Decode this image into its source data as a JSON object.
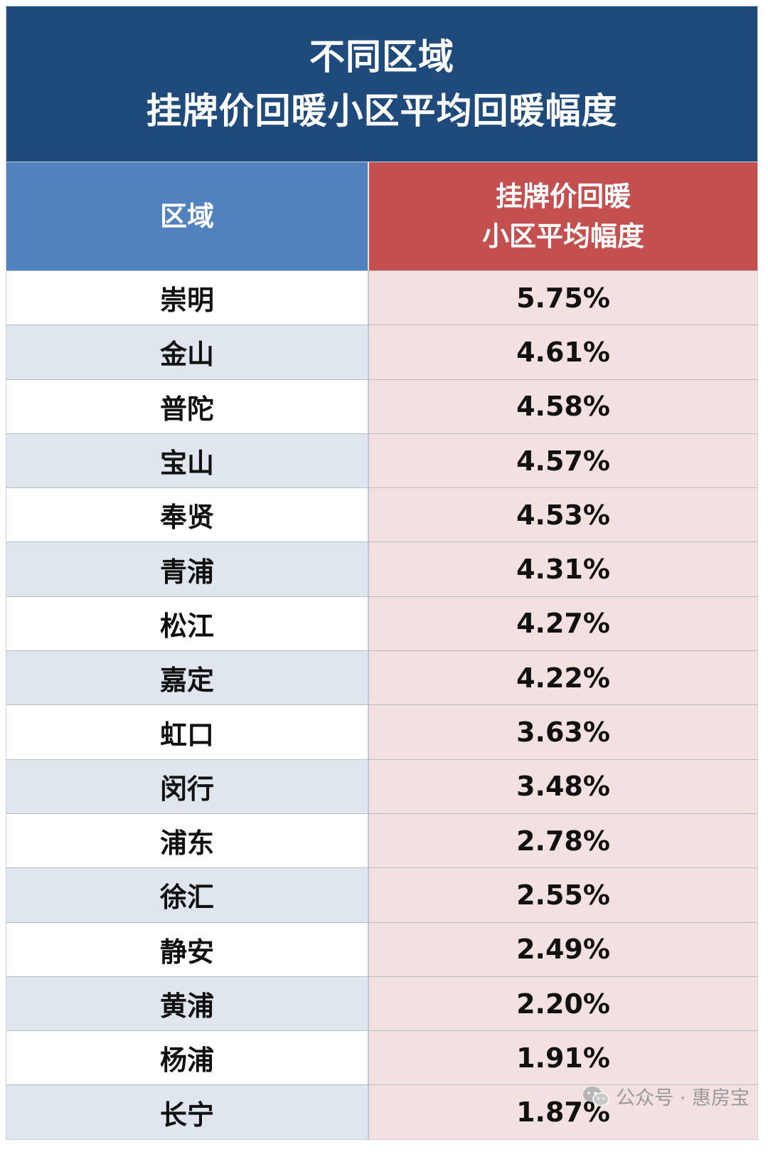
{
  "chart_data": {
    "type": "table",
    "title": "不同区域\n挂牌价回暖小区平均回暖幅度",
    "title_lines": [
      "不同区域",
      "挂牌价回暖小区平均回暖幅度"
    ],
    "columns": [
      {
        "lines": [
          "区域"
        ]
      },
      {
        "lines": [
          "挂牌价回暖",
          "小区平均幅度"
        ]
      }
    ],
    "rows": [
      {
        "region": "崇明",
        "value": "5.75%"
      },
      {
        "region": "金山",
        "value": "4.61%"
      },
      {
        "region": "普陀",
        "value": "4.58%"
      },
      {
        "region": "宝山",
        "value": "4.57%"
      },
      {
        "region": "奉贤",
        "value": "4.53%"
      },
      {
        "region": "青浦",
        "value": "4.31%"
      },
      {
        "region": "松江",
        "value": "4.27%"
      },
      {
        "region": "嘉定",
        "value": "4.22%"
      },
      {
        "region": "虹口",
        "value": "3.63%"
      },
      {
        "region": "闵行",
        "value": "3.48%"
      },
      {
        "region": "浦东",
        "value": "2.78%"
      },
      {
        "region": "徐汇",
        "value": "2.55%"
      },
      {
        "region": "静安",
        "value": "2.49%"
      },
      {
        "region": "黄浦",
        "value": "2.20%"
      },
      {
        "region": "杨浦",
        "value": "1.91%"
      },
      {
        "region": "长宁",
        "value": "1.87%"
      }
    ]
  },
  "watermark": {
    "text": "公众号 · 惠房宝",
    "icon": "wechat-icon"
  },
  "colors": {
    "title_bg": "#1f4a7c",
    "header_left_bg": "#5181bf",
    "header_right_bg": "#c44f4f",
    "row_alt_bg": "#dfe6ee",
    "value_bg": "#f3e1e1"
  }
}
